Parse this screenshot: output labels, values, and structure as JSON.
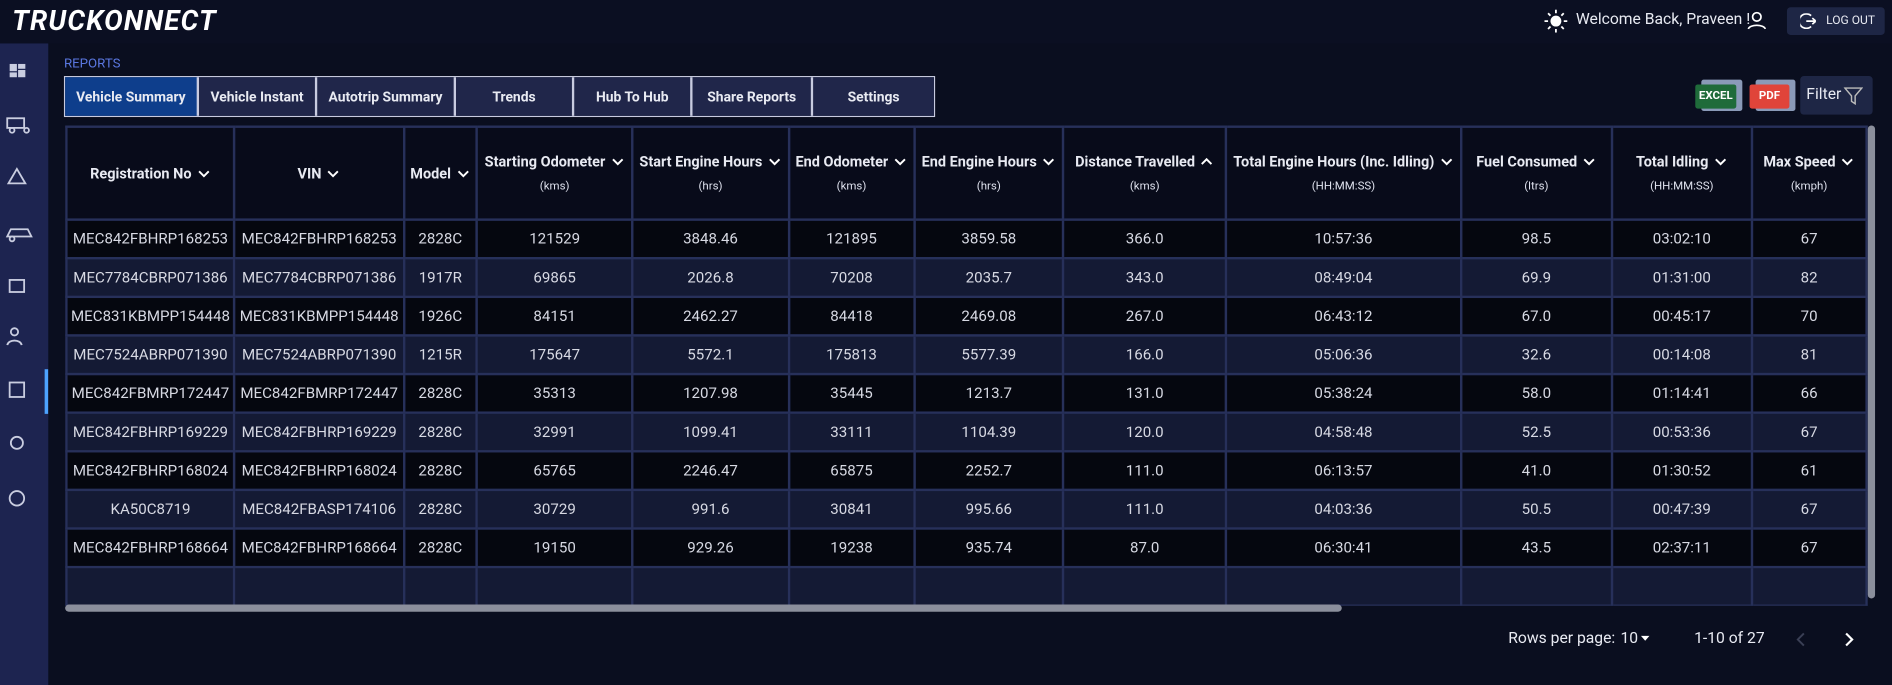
{
  "header": {
    "brand": "TRUCKONNECT",
    "welcome": "Welcome Back, Praveen !",
    "logout": "LOG OUT"
  },
  "section": "REPORTS",
  "tabs": [
    "Vehicle Summary",
    "Vehicle Instant",
    "Autotrip Summary",
    "Trends",
    "Hub To Hub",
    "Share Reports",
    "Settings"
  ],
  "exports": [
    "EXCEL",
    "PDF"
  ],
  "filter": "Filter",
  "table": {
    "columns": [
      {
        "name": "Registration No"
      },
      {
        "name": "VIN"
      },
      {
        "name": "Model"
      },
      {
        "name": "Starting Odometer",
        "unit": "(kms)"
      },
      {
        "name": "Start Engine Hours",
        "unit": "(hrs)"
      },
      {
        "name": "End Odometer",
        "unit": "(kms)"
      },
      {
        "name": "End Engine Hours",
        "unit": "(hrs)"
      },
      {
        "name": "Distance Travelled",
        "unit": "(kms)",
        "sort": "asc"
      },
      {
        "name": "Total Engine Hours (Inc. Idling)",
        "unit": "(HH:MM:SS)"
      },
      {
        "name": "Fuel Consumed",
        "unit": "(ltrs)"
      },
      {
        "name": "Total Idling",
        "unit": "(HH:MM:SS)"
      },
      {
        "name": "Max Speed",
        "unit": "(kmph)"
      }
    ],
    "rows": [
      [
        "MEC842FBHRP168253",
        "MEC842FBHRP168253",
        "2828C",
        "121529",
        "3848.46",
        "121895",
        "3859.58",
        "366.0",
        "10:57:36",
        "98.5",
        "03:02:10",
        "67"
      ],
      [
        "MEC7784CBRP071386",
        "MEC7784CBRP071386",
        "1917R",
        "69865",
        "2026.8",
        "70208",
        "2035.7",
        "343.0",
        "08:49:04",
        "69.9",
        "01:31:00",
        "82"
      ],
      [
        "MEC831KBMPP154448",
        "MEC831KBMPP154448",
        "1926C",
        "84151",
        "2462.27",
        "84418",
        "2469.08",
        "267.0",
        "06:43:12",
        "67.0",
        "00:45:17",
        "70"
      ],
      [
        "MEC7524ABRP071390",
        "MEC7524ABRP071390",
        "1215R",
        "175647",
        "5572.1",
        "175813",
        "5577.39",
        "166.0",
        "05:06:36",
        "32.6",
        "00:14:08",
        "81"
      ],
      [
        "MEC842FBMRP172447",
        "MEC842FBMRP172447",
        "2828C",
        "35313",
        "1207.98",
        "35445",
        "1213.7",
        "131.0",
        "05:38:24",
        "58.0",
        "01:14:41",
        "66"
      ],
      [
        "MEC842FBHRP169229",
        "MEC842FBHRP169229",
        "2828C",
        "32991",
        "1099.41",
        "33111",
        "1104.39",
        "120.0",
        "04:58:48",
        "52.5",
        "00:53:36",
        "67"
      ],
      [
        "MEC842FBHRP168024",
        "MEC842FBHRP168024",
        "2828C",
        "65765",
        "2246.47",
        "65875",
        "2252.7",
        "111.0",
        "06:13:57",
        "41.0",
        "01:30:52",
        "61"
      ],
      [
        "KA50C8719",
        "MEC842FBASP174106",
        "2828C",
        "30729",
        "991.6",
        "30841",
        "995.66",
        "111.0",
        "04:03:36",
        "50.5",
        "00:47:39",
        "67"
      ],
      [
        "MEC842FBHRP168664",
        "MEC842FBHRP168664",
        "2828C",
        "19150",
        "929.26",
        "19238",
        "935.74",
        "87.0",
        "06:30:41",
        "43.5",
        "02:37:11",
        "67"
      ]
    ]
  },
  "pagination": {
    "label": "Rows per page:",
    "rows_per_page": "10",
    "range": "1-10 of 27"
  }
}
